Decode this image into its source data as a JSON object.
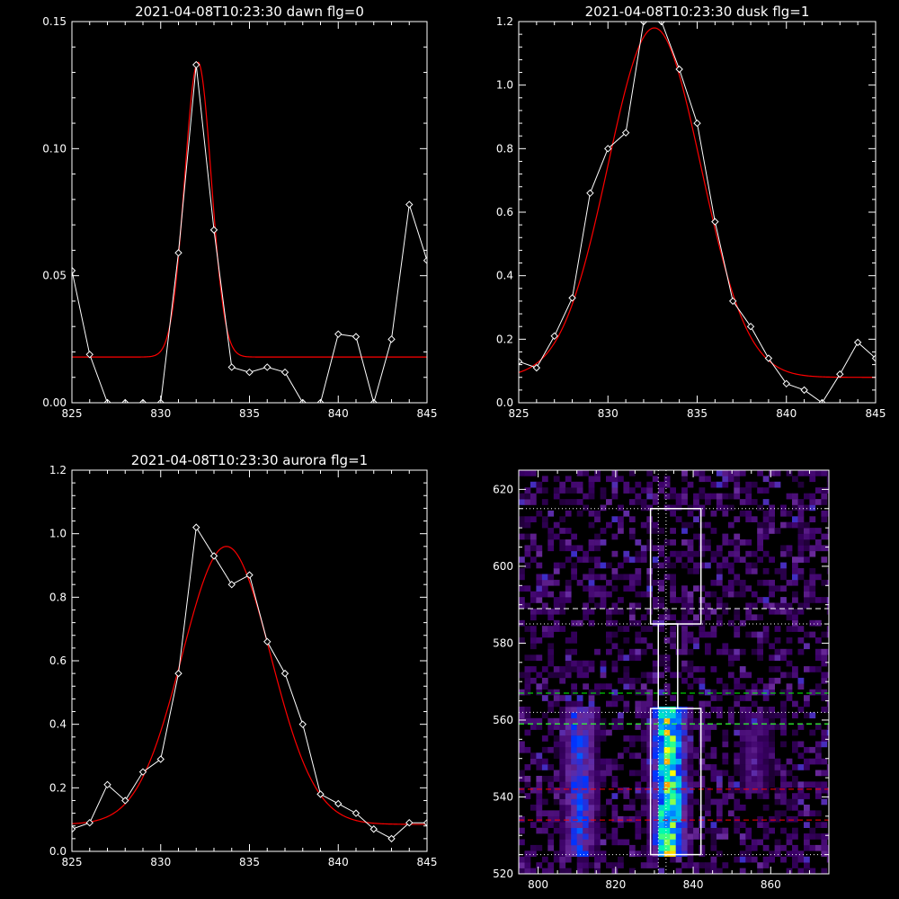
{
  "chart_data": [
    {
      "id": "dawn",
      "type": "line",
      "title": "2021-04-08T10:23:30 dawn flg=0",
      "xlim": [
        825,
        845
      ],
      "ylim": [
        0,
        0.15
      ],
      "xticks": [
        825,
        830,
        835,
        840,
        845
      ],
      "yticks": [
        0.0,
        0.05,
        0.1,
        0.15
      ],
      "ytick_labels": [
        "0.00",
        "0.05",
        "0.10",
        "0.15"
      ],
      "series": [
        {
          "style": "white-diamonds",
          "color": "#ffffff",
          "x": [
            825,
            826,
            827,
            828,
            829,
            830,
            831,
            832,
            833,
            834,
            835,
            836,
            837,
            838,
            839,
            840,
            841,
            842,
            843,
            844,
            845
          ],
          "y": [
            0.052,
            0.019,
            0.0,
            0.0,
            0.0,
            0.0,
            0.059,
            0.133,
            0.068,
            0.014,
            0.012,
            0.014,
            0.012,
            0.0,
            0.0,
            0.027,
            0.026,
            0.0,
            0.025,
            0.078,
            0.056
          ]
        },
        {
          "style": "fit",
          "color": "#ff0000",
          "fit": {
            "baseline": 0.018,
            "amplitude": 0.116,
            "center": 832.1,
            "sigma": 0.75
          }
        }
      ]
    },
    {
      "id": "dusk",
      "type": "line",
      "title": "2021-04-08T10:23:30 dusk flg=1",
      "xlim": [
        825,
        845
      ],
      "ylim": [
        0,
        1.2
      ],
      "xticks": [
        825,
        830,
        835,
        840,
        845
      ],
      "yticks": [
        0.0,
        0.2,
        0.4,
        0.6,
        0.8,
        1.0,
        1.2
      ],
      "ytick_labels": [
        "0.0",
        "0.2",
        "0.4",
        "0.6",
        "0.8",
        "1.0",
        "1.2"
      ],
      "series": [
        {
          "style": "white-diamonds",
          "color": "#ffffff",
          "x": [
            825,
            826,
            827,
            828,
            829,
            830,
            831,
            832,
            833,
            834,
            835,
            836,
            837,
            838,
            839,
            840,
            841,
            842,
            843,
            844,
            845
          ],
          "y": [
            0.13,
            0.11,
            0.21,
            0.33,
            0.66,
            0.8,
            0.85,
            1.2,
            1.2,
            1.05,
            0.88,
            0.57,
            0.32,
            0.24,
            0.14,
            0.06,
            0.04,
            0.0,
            0.09,
            0.19,
            0.14
          ]
        },
        {
          "style": "fit",
          "color": "#ff0000",
          "fit": {
            "baseline": 0.08,
            "amplitude": 1.1,
            "center": 832.6,
            "sigma": 2.6
          }
        }
      ]
    },
    {
      "id": "aurora",
      "type": "line",
      "title": "2021-04-08T10:23:30 aurora flg=1",
      "xlim": [
        825,
        845
      ],
      "ylim": [
        0,
        1.2
      ],
      "xticks": [
        825,
        830,
        835,
        840,
        845
      ],
      "yticks": [
        0.0,
        0.2,
        0.4,
        0.6,
        0.8,
        1.0,
        1.2
      ],
      "ytick_labels": [
        "0.0",
        "0.2",
        "0.4",
        "0.6",
        "0.8",
        "1.0",
        "1.2"
      ],
      "series": [
        {
          "style": "white-diamonds",
          "color": "#ffffff",
          "x": [
            825,
            826,
            827,
            828,
            829,
            830,
            831,
            832,
            833,
            834,
            835,
            836,
            837,
            838,
            839,
            840,
            841,
            842,
            843,
            844,
            845
          ],
          "y": [
            0.07,
            0.09,
            0.21,
            0.16,
            0.25,
            0.29,
            0.56,
            1.02,
            0.93,
            0.84,
            0.87,
            0.66,
            0.56,
            0.4,
            0.18,
            0.15,
            0.12,
            0.07,
            0.04,
            0.09,
            0.09
          ]
        },
        {
          "style": "fit",
          "color": "#ff0000",
          "fit": {
            "baseline": 0.085,
            "amplitude": 0.875,
            "center": 833.7,
            "sigma": 2.5
          }
        }
      ]
    },
    {
      "id": "image",
      "type": "heatmap",
      "title": "",
      "xlim": [
        795,
        875
      ],
      "ylim": [
        520,
        625
      ],
      "xticks": [
        800,
        820,
        840,
        860
      ],
      "yticks": [
        520,
        540,
        560,
        580,
        600,
        620
      ],
      "colorscale": [
        "#000000",
        "#3a0066",
        "#6a2a9a",
        "#0033ff",
        "#00aaff",
        "#00ffaa",
        "#ffff00",
        "#ff0000"
      ],
      "emission_columns": [
        {
          "x": 810,
          "y_range": [
            524,
            563
          ],
          "intensity": 0.45
        },
        {
          "x": 833,
          "y_range": [
            524,
            563
          ],
          "intensity": 0.85
        },
        {
          "x": 855,
          "y_range": [
            541,
            561
          ],
          "intensity": 0.22
        }
      ],
      "boxes": [
        {
          "x": [
            829,
            842
          ],
          "y": [
            585,
            615
          ]
        },
        {
          "x": [
            831,
            836
          ],
          "y": [
            563,
            585
          ]
        },
        {
          "x": [
            829,
            842
          ],
          "y": [
            525,
            563
          ]
        }
      ],
      "vertical_dotted": [
        831,
        833
      ],
      "hlines": [
        {
          "y": 615,
          "style": "dotted",
          "color": "#ffffff"
        },
        {
          "y": 589,
          "style": "dashed",
          "color": "#ffffff"
        },
        {
          "y": 585,
          "style": "dotted",
          "color": "#ffffff"
        },
        {
          "y": 567,
          "style": "dashed",
          "color": "#00ff00"
        },
        {
          "y": 562,
          "style": "dotted",
          "color": "#ffffff"
        },
        {
          "y": 559,
          "style": "dashed",
          "color": "#ffffff"
        },
        {
          "y": 559,
          "style": "dashed",
          "color": "#00ff00"
        },
        {
          "y": 542,
          "style": "dashed",
          "color": "#ff0000"
        },
        {
          "y": 534,
          "style": "dashed",
          "color": "#ff0000"
        },
        {
          "y": 525,
          "style": "dotted",
          "color": "#ffffff"
        }
      ]
    }
  ]
}
